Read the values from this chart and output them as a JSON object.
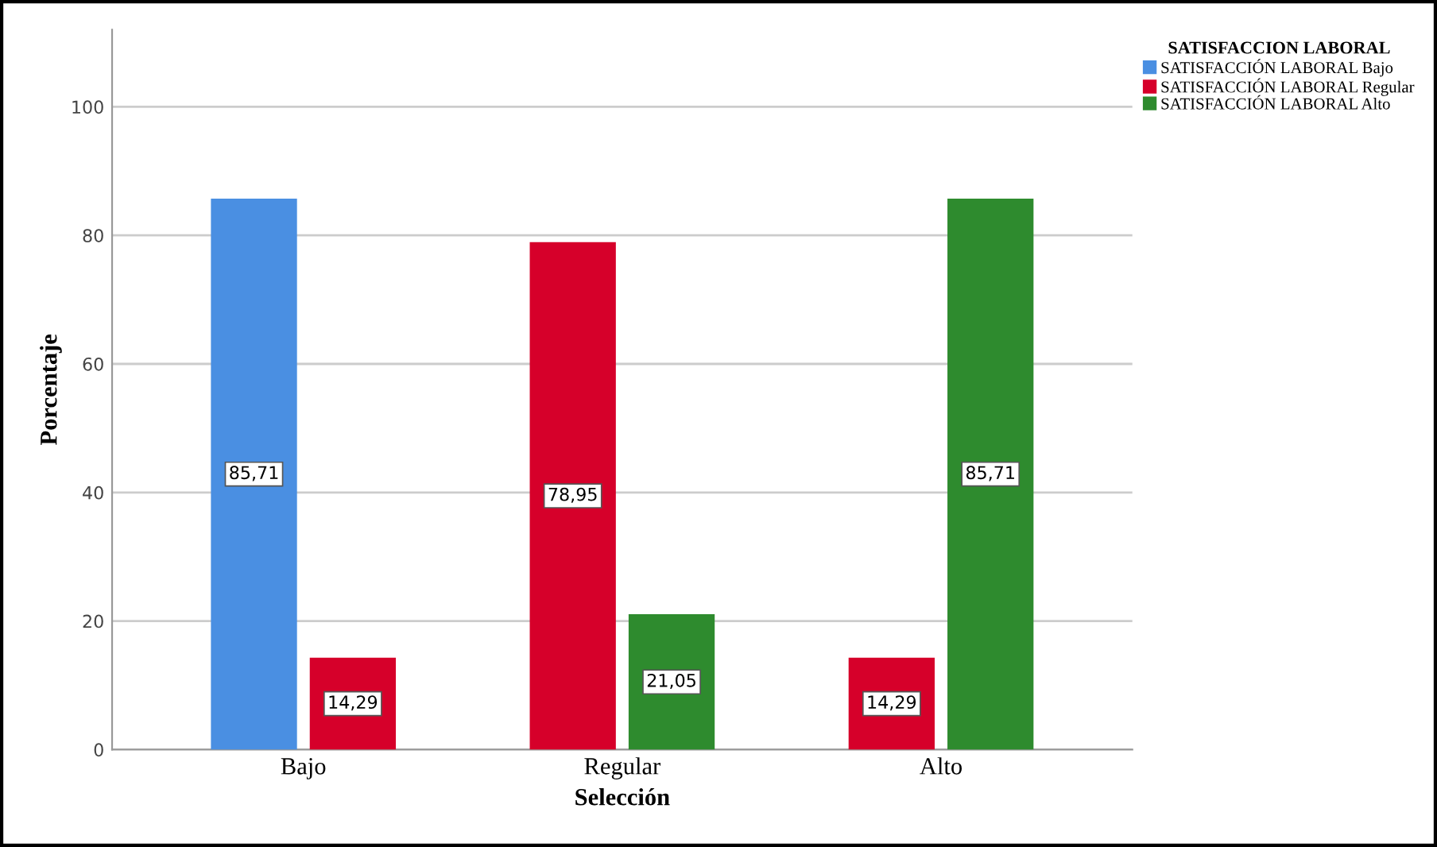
{
  "chart_data": {
    "type": "bar",
    "xlabel": "Selección",
    "ylabel": "Porcentaje",
    "legend_title": "SATISFACCION LABORAL",
    "categories": [
      "Bajo",
      "Regular",
      "Alto"
    ],
    "series": [
      {
        "name": "SATISFACCIÓN LABORAL Bajo",
        "color": "#4a8fe2",
        "values": [
          85.71,
          null,
          null
        ],
        "value_labels": [
          "85,71",
          null,
          null
        ]
      },
      {
        "name": "SATISFACCIÓN LABORAL Regular",
        "color": "#d6002a",
        "values": [
          14.29,
          78.95,
          14.29
        ],
        "value_labels": [
          "14,29",
          "78,95",
          "14,29"
        ]
      },
      {
        "name": "SATISFACCIÓN LABORAL Alto",
        "color": "#2e8b2e",
        "values": [
          null,
          21.05,
          85.71
        ],
        "value_labels": [
          null,
          "21,05",
          "85,71"
        ]
      }
    ],
    "ylim": [
      0,
      112
    ],
    "yticks": [
      0,
      20,
      40,
      60,
      80,
      100
    ],
    "grid": "y",
    "legend": "top right"
  }
}
